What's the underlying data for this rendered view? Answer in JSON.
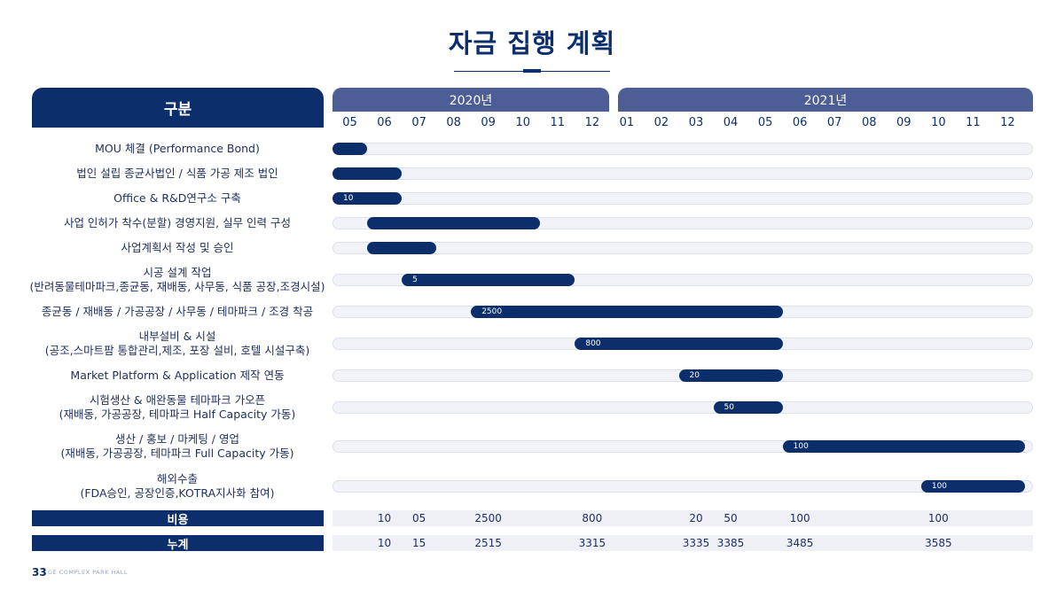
{
  "title": "자금 집행 계획",
  "header": {
    "category_label": "구분",
    "years": [
      "2020년",
      "2021년"
    ],
    "months": [
      "05",
      "06",
      "07",
      "08",
      "09",
      "10",
      "11",
      "12",
      "01",
      "02",
      "03",
      "04",
      "05",
      "06",
      "07",
      "08",
      "09",
      "10",
      "11",
      "12"
    ]
  },
  "rows": [
    {
      "lines": [
        "MOU 체결 (Performance Bond)"
      ],
      "start": 0,
      "end": 1,
      "value": ""
    },
    {
      "lines": [
        "법인 설립 종균사법인 / 식품 가공 제조 법인"
      ],
      "start": 0,
      "end": 2,
      "value": ""
    },
    {
      "lines": [
        "Office & R&D연구소 구축"
      ],
      "start": 0,
      "end": 2,
      "value": "10"
    },
    {
      "lines": [
        "사업 인허가 착수(분할) 경영지원, 실무 인력 구성"
      ],
      "start": 1,
      "end": 6,
      "value": ""
    },
    {
      "lines": [
        "사업계획서 작성 및 승인"
      ],
      "start": 1,
      "end": 3,
      "value": ""
    },
    {
      "lines": [
        "시공 설계 작업",
        "(반려동물테마파크,종균동, 재배동, 사무동, 식품 공장,조경시설)"
      ],
      "start": 2,
      "end": 7,
      "value": "5"
    },
    {
      "lines": [
        "종균동 / 재배동 / 가공공장 / 사무동 / 테마파크 / 조경 착공"
      ],
      "start": 4,
      "end": 13,
      "value": "2500"
    },
    {
      "lines": [
        "내부설비 & 시설",
        "(공조,스마트팜 통합관리,제조, 포장 설비, 호텔 시설구축)"
      ],
      "start": 7,
      "end": 13,
      "value": "800"
    },
    {
      "lines": [
        "Market Platform & Application 제작 연동"
      ],
      "start": 10,
      "end": 13,
      "value": "20"
    },
    {
      "lines": [
        "시험생산 & 애완동물 테마파크 가오픈",
        "(재배동, 가공공장, 테마파크 Half Capacity 가동)"
      ],
      "start": 11,
      "end": 13,
      "value": "50"
    },
    {
      "lines": [
        "생산 / 홍보 / 마케팅 / 영업",
        "(재배동, 가공공장, 테마파크 Full Capacity 가동)"
      ],
      "start": 13,
      "end": 20,
      "value": "100"
    },
    {
      "lines": [
        "해외수출",
        "(FDA승인, 공장인증,KOTRA지사화 참여)"
      ],
      "start": 17,
      "end": 20,
      "value": "100"
    }
  ],
  "cost_row": {
    "label": "비용",
    "values": [
      {
        "col": 1,
        "text": "10"
      },
      {
        "col": 2,
        "text": "05"
      },
      {
        "col": 4,
        "text": "2500"
      },
      {
        "col": 7,
        "text": "800"
      },
      {
        "col": 10,
        "text": "20"
      },
      {
        "col": 11,
        "text": "50"
      },
      {
        "col": 13,
        "text": "100"
      },
      {
        "col": 17,
        "text": "100"
      }
    ]
  },
  "cumulative_row": {
    "label": "누계",
    "values": [
      {
        "col": 1,
        "text": "10"
      },
      {
        "col": 2,
        "text": "15"
      },
      {
        "col": 4,
        "text": "2515"
      },
      {
        "col": 7,
        "text": "3315"
      },
      {
        "col": 10,
        "text": "3335"
      },
      {
        "col": 11,
        "text": "3385"
      },
      {
        "col": 13,
        "text": "3485"
      },
      {
        "col": 17,
        "text": "3585"
      }
    ]
  },
  "footer": {
    "page_number": "33",
    "brand": "GE COMPLEX PARK HALL"
  },
  "colors": {
    "primary": "#0c2f6b",
    "year_header": "#4d5d95",
    "track": "#f2f3f8"
  }
}
